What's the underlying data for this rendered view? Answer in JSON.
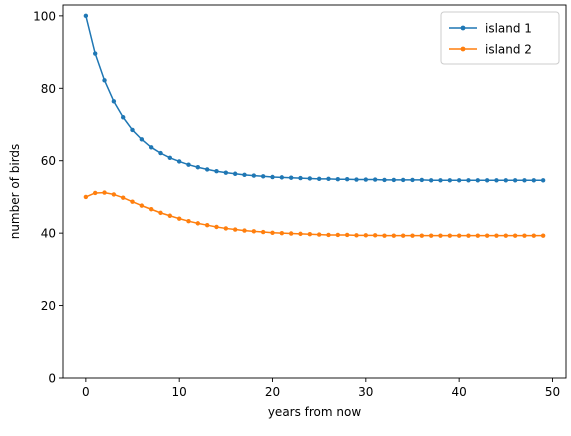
{
  "chart_data": {
    "type": "line",
    "title": "",
    "xlabel": "years from now",
    "ylabel": "number of birds",
    "xlim": [
      -2.45,
      51.45
    ],
    "ylim": [
      0,
      103
    ],
    "xticks": [
      0,
      10,
      20,
      30,
      40,
      50
    ],
    "yticks": [
      0,
      20,
      40,
      60,
      80,
      100
    ],
    "grid": false,
    "legend_position": "top-right",
    "x": [
      0,
      1,
      2,
      3,
      4,
      5,
      6,
      7,
      8,
      9,
      10,
      11,
      12,
      13,
      14,
      15,
      16,
      17,
      18,
      19,
      20,
      21,
      22,
      23,
      24,
      25,
      26,
      27,
      28,
      29,
      30,
      31,
      32,
      33,
      34,
      35,
      36,
      37,
      38,
      39,
      40,
      41,
      42,
      43,
      44,
      45,
      46,
      47,
      48,
      49
    ],
    "series": [
      {
        "name": "island 1",
        "color": "#1f77b4",
        "marker": "circle",
        "values": [
          100.0,
          89.6,
          82.2,
          76.4,
          72.0,
          68.5,
          65.9,
          63.7,
          62.1,
          60.8,
          59.8,
          58.9,
          58.2,
          57.6,
          57.1,
          56.7,
          56.4,
          56.1,
          55.9,
          55.7,
          55.5,
          55.4,
          55.3,
          55.2,
          55.1,
          55.0,
          55.0,
          54.9,
          54.9,
          54.8,
          54.8,
          54.8,
          54.7,
          54.7,
          54.7,
          54.7,
          54.7,
          54.6,
          54.6,
          54.6,
          54.6,
          54.6,
          54.6,
          54.6,
          54.6,
          54.6,
          54.6,
          54.6,
          54.6,
          54.6
        ]
      },
      {
        "name": "island 2",
        "color": "#ff7f0e",
        "marker": "circle",
        "values": [
          50.0,
          51.1,
          51.2,
          50.7,
          49.8,
          48.7,
          47.6,
          46.6,
          45.6,
          44.8,
          44.0,
          43.3,
          42.7,
          42.2,
          41.7,
          41.3,
          41.0,
          40.7,
          40.5,
          40.3,
          40.1,
          40.0,
          39.9,
          39.8,
          39.7,
          39.6,
          39.5,
          39.5,
          39.5,
          39.4,
          39.4,
          39.4,
          39.3,
          39.3,
          39.3,
          39.3,
          39.3,
          39.3,
          39.3,
          39.3,
          39.3,
          39.3,
          39.3,
          39.3,
          39.3,
          39.3,
          39.3,
          39.3,
          39.3,
          39.3
        ]
      }
    ]
  }
}
